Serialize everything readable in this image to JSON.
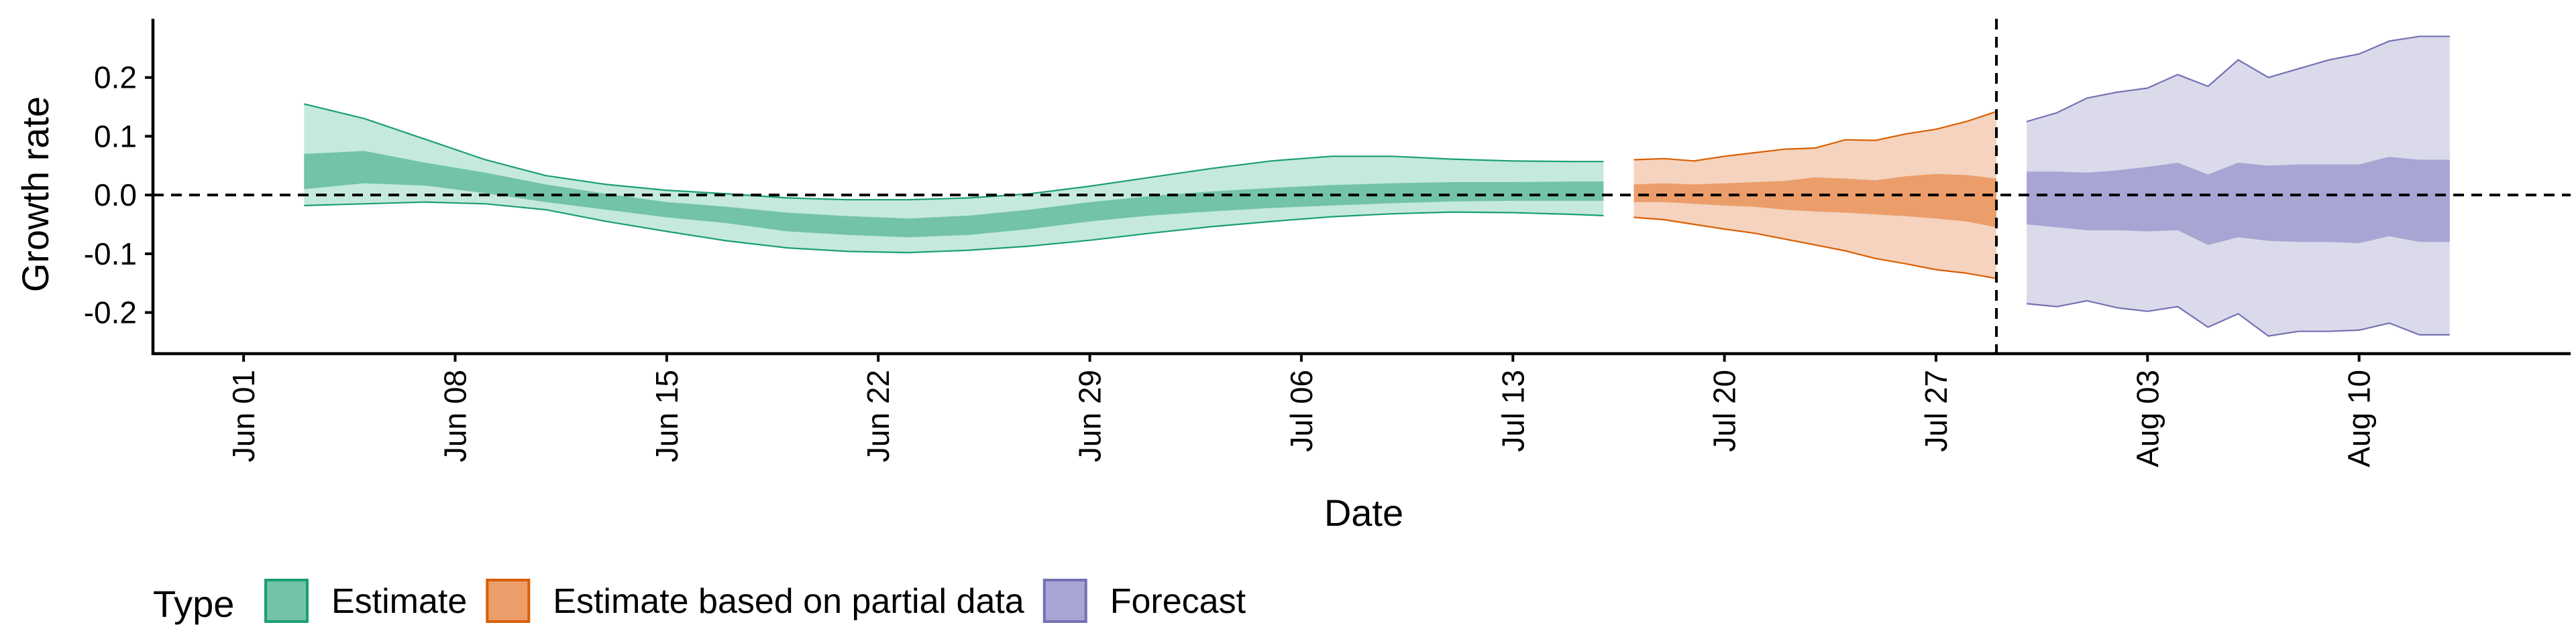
{
  "chart_data": {
    "type": "area",
    "xlabel": "Date",
    "ylabel": "Growth rate",
    "xlim": [
      "2020-05-29",
      "2020-08-17"
    ],
    "ylim": [
      -0.27,
      0.3
    ],
    "x_ticks": [
      "2020-06-01",
      "2020-06-08",
      "2020-06-15",
      "2020-06-22",
      "2020-06-29",
      "2020-07-06",
      "2020-07-13",
      "2020-07-20",
      "2020-07-27",
      "2020-08-03",
      "2020-08-10"
    ],
    "x_tick_labels": [
      "Jun 01",
      "Jun 08",
      "Jun 15",
      "Jun 22",
      "Jun 29",
      "Jul 06",
      "Jul 13",
      "Jul 20",
      "Jul 27",
      "Aug 03",
      "Aug 10"
    ],
    "y_ticks": [
      -0.2,
      -0.1,
      0.0,
      0.1,
      0.2
    ],
    "y_tick_labels": [
      "-0.2",
      "-0.1",
      "0.0",
      "0.1",
      "0.2"
    ],
    "reference_lines": {
      "horizontal_y": 0.0,
      "vertical_x": "2020-07-29"
    },
    "grid": false,
    "legend": {
      "title": "Type",
      "placement": "bottom-left",
      "entries": [
        "Estimate",
        "Estimate based on partial data",
        "Forecast"
      ]
    },
    "series": [
      {
        "name": "Estimate",
        "fill": "#66C2A5",
        "outer_fill": "#C5E9DD",
        "inner_fill": "#72C3A7",
        "line": "#1B9E77",
        "x": [
          "2020-06-03",
          "2020-06-05",
          "2020-06-07",
          "2020-06-09",
          "2020-06-11",
          "2020-06-13",
          "2020-06-15",
          "2020-06-17",
          "2020-06-19",
          "2020-06-21",
          "2020-06-23",
          "2020-06-25",
          "2020-06-27",
          "2020-06-29",
          "2020-07-01",
          "2020-07-03",
          "2020-07-05",
          "2020-07-07",
          "2020-07-09",
          "2020-07-11",
          "2020-07-13",
          "2020-07-15",
          "2020-07-16"
        ],
        "lower90": [
          -0.018,
          -0.015,
          -0.012,
          -0.015,
          -0.025,
          -0.045,
          -0.062,
          -0.078,
          -0.09,
          -0.096,
          -0.098,
          -0.094,
          -0.087,
          -0.077,
          -0.065,
          -0.054,
          -0.045,
          -0.037,
          -0.032,
          -0.029,
          -0.03,
          -0.033,
          -0.035
        ],
        "lower50": [
          0.01,
          0.02,
          0.016,
          0.003,
          -0.012,
          -0.025,
          -0.038,
          -0.048,
          -0.062,
          -0.068,
          -0.072,
          -0.068,
          -0.058,
          -0.045,
          -0.035,
          -0.028,
          -0.022,
          -0.018,
          -0.014,
          -0.011,
          -0.01,
          -0.01,
          -0.01
        ],
        "upper50": [
          0.07,
          0.075,
          0.055,
          0.038,
          0.018,
          0.002,
          -0.012,
          -0.02,
          -0.03,
          -0.036,
          -0.04,
          -0.035,
          -0.025,
          -0.012,
          -0.002,
          0.006,
          0.012,
          0.017,
          0.02,
          0.022,
          0.022,
          0.023,
          0.023
        ],
        "upper90": [
          0.155,
          0.13,
          0.095,
          0.06,
          0.033,
          0.018,
          0.008,
          0.002,
          -0.005,
          -0.008,
          -0.008,
          -0.005,
          0.002,
          0.015,
          0.03,
          0.045,
          0.058,
          0.066,
          0.066,
          0.061,
          0.058,
          0.057,
          0.057
        ]
      },
      {
        "name": "Estimate based on partial data",
        "fill": "#FC8D62",
        "outer_fill": "#F5D3BE",
        "inner_fill": "#EB9E6A",
        "line": "#D95F02",
        "x": [
          "2020-07-17",
          "2020-07-18",
          "2020-07-19",
          "2020-07-20",
          "2020-07-21",
          "2020-07-22",
          "2020-07-23",
          "2020-07-24",
          "2020-07-25",
          "2020-07-26",
          "2020-07-27",
          "2020-07-28",
          "2020-07-29"
        ],
        "lower90": [
          -0.038,
          -0.042,
          -0.05,
          -0.058,
          -0.065,
          -0.075,
          -0.085,
          -0.095,
          -0.108,
          -0.117,
          -0.127,
          -0.133,
          -0.142
        ],
        "lower50": [
          -0.012,
          -0.012,
          -0.015,
          -0.018,
          -0.02,
          -0.025,
          -0.028,
          -0.03,
          -0.033,
          -0.036,
          -0.04,
          -0.045,
          -0.055
        ],
        "upper50": [
          0.018,
          0.02,
          0.018,
          0.02,
          0.022,
          0.024,
          0.03,
          0.028,
          0.025,
          0.032,
          0.036,
          0.034,
          0.028
        ],
        "upper90": [
          0.06,
          0.062,
          0.058,
          0.066,
          0.072,
          0.078,
          0.08,
          0.094,
          0.093,
          0.104,
          0.112,
          0.125,
          0.142
        ]
      },
      {
        "name": "Forecast",
        "fill": "#8DA0CB",
        "outer_fill": "#DADAEB",
        "inner_fill": "#A8A5D4",
        "line": "#7570B3",
        "x": [
          "2020-07-30",
          "2020-07-31",
          "2020-08-01",
          "2020-08-02",
          "2020-08-03",
          "2020-08-04",
          "2020-08-05",
          "2020-08-06",
          "2020-08-07",
          "2020-08-08",
          "2020-08-09",
          "2020-08-10",
          "2020-08-11",
          "2020-08-12",
          "2020-08-13"
        ],
        "lower90": [
          -0.185,
          -0.19,
          -0.18,
          -0.192,
          -0.198,
          -0.19,
          -0.225,
          -0.202,
          -0.24,
          -0.232,
          -0.232,
          -0.23,
          -0.218,
          -0.238,
          -0.238
        ],
        "lower50": [
          -0.05,
          -0.055,
          -0.06,
          -0.06,
          -0.062,
          -0.06,
          -0.085,
          -0.072,
          -0.078,
          -0.08,
          -0.08,
          -0.082,
          -0.07,
          -0.08,
          -0.08
        ],
        "upper50": [
          0.04,
          0.04,
          0.038,
          0.042,
          0.048,
          0.055,
          0.035,
          0.055,
          0.05,
          0.052,
          0.052,
          0.052,
          0.065,
          0.06,
          0.06
        ],
        "upper90": [
          0.125,
          0.14,
          0.165,
          0.175,
          0.182,
          0.205,
          0.185,
          0.23,
          0.2,
          0.215,
          0.23,
          0.24,
          0.262,
          0.27,
          0.27
        ]
      }
    ]
  }
}
